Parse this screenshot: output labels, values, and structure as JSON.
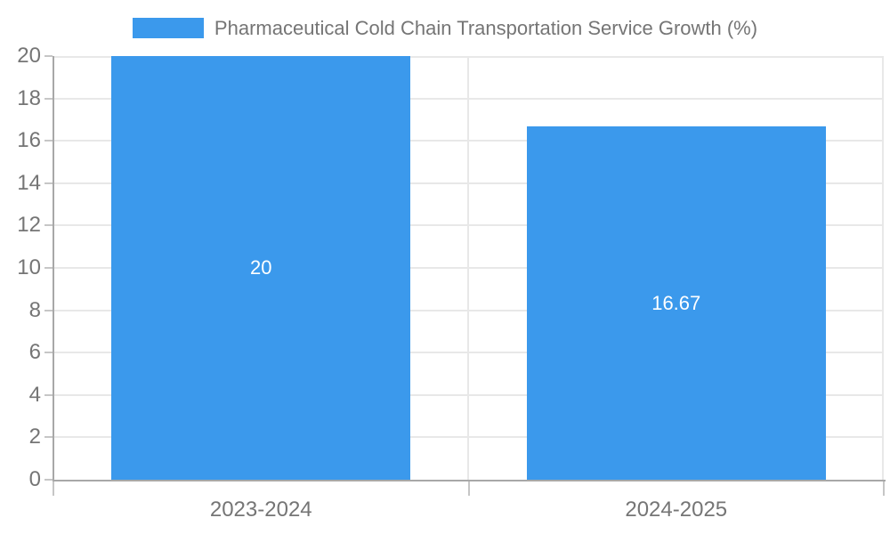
{
  "colors": {
    "bar": "#3B99EC",
    "axis": "#A8A8A8",
    "tick": "#C6C6C6",
    "grid": "#E8E8E8",
    "label_text": "#757575",
    "bar_label_text": "#FFFFFF",
    "background": "#FFFFFF"
  },
  "legend": {
    "label": "Pharmaceutical Cold Chain Transportation Service Growth (%)"
  },
  "chart_data": {
    "type": "bar",
    "title": "Pharmaceutical Cold Chain Transportation Service Growth (%)",
    "categories": [
      "2023-2024",
      "2024-2025"
    ],
    "values": [
      20,
      16.67
    ],
    "bar_labels": [
      "20",
      "16.67"
    ],
    "xlabel": "",
    "ylabel": "",
    "ylim": [
      0,
      20
    ],
    "ytick_step": 2,
    "ytick_labels": [
      "0",
      "2",
      "4",
      "6",
      "8",
      "10",
      "12",
      "14",
      "16",
      "18",
      "20"
    ],
    "grid": true,
    "legend_position": "top",
    "bar_label_position": "center"
  }
}
